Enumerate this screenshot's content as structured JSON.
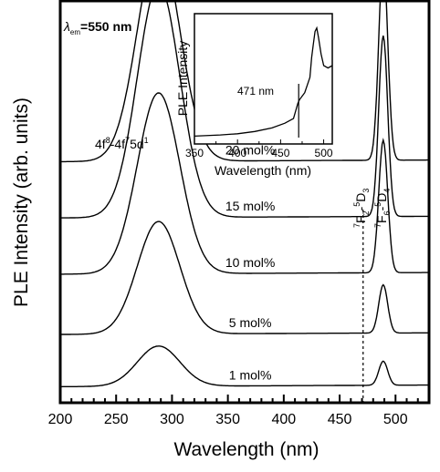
{
  "chart_data": [
    {
      "type": "line",
      "title": "",
      "annotation_top": {
        "symbol": "λ",
        "subscript": "em",
        "text": "=550 nm"
      },
      "xlabel": "Wavelength (nm)",
      "ylabel": "PLE Intensity (arb. units)",
      "xlim": [
        200,
        530
      ],
      "x_ticks": [
        200,
        250,
        300,
        350,
        400,
        450,
        500
      ],
      "y_ticks": "none",
      "band_label": {
        "a": "4f",
        "a_sup": "8",
        "b": "-4f",
        "b_sup": "7",
        "c": "5d",
        "c_sup": "1"
      },
      "transition_labels": [
        {
          "pre_sup": "7",
          "base": "F",
          "sub": "2",
          "mid": "-",
          "mid_sup": "5",
          "end": "D",
          "end_sub": "3"
        },
        {
          "pre_sup": "7",
          "base": "F",
          "sub": "6",
          "mid": "-",
          "mid_sup": "5",
          "end": "D",
          "end_sub": "4"
        }
      ],
      "dashed_line_x": 471,
      "series": [
        {
          "name": "1 mol%",
          "baseline": 0.04,
          "band_amp": 0.1,
          "peak_amp": 0.06
        },
        {
          "name": "5 mol%",
          "baseline": 0.17,
          "band_amp": 0.28,
          "peak_amp": 0.12
        },
        {
          "name": "10 mol%",
          "baseline": 0.32,
          "band_amp": 0.45,
          "peak_amp": 0.33
        },
        {
          "name": "15 mol%",
          "baseline": 0.46,
          "band_amp": 0.58,
          "peak_amp": 0.45
        },
        {
          "name": "20 mol%",
          "baseline": 0.6,
          "band_amp": 0.54,
          "peak_amp": 0.5
        }
      ],
      "band_center_nm": 288,
      "band_width_nm": 19,
      "peak_center_nm": 489,
      "peak_width_nm": 4
    },
    {
      "type": "line",
      "inset": true,
      "xlabel": "Wavelength (nm)",
      "ylabel": "PLE Intensity",
      "xlim": [
        350,
        510
      ],
      "x_ticks": [
        350,
        400,
        450,
        500
      ],
      "annotation": "471 nm",
      "x": [
        350,
        380,
        400,
        420,
        440,
        455,
        465,
        470,
        472,
        478,
        484,
        486,
        488,
        490,
        492,
        494,
        497,
        500,
        505,
        510
      ],
      "y": [
        0.02,
        0.03,
        0.04,
        0.06,
        0.09,
        0.13,
        0.17,
        0.3,
        0.33,
        0.39,
        0.52,
        0.69,
        0.8,
        0.91,
        0.94,
        0.86,
        0.72,
        0.62,
        0.6,
        0.62
      ]
    }
  ]
}
